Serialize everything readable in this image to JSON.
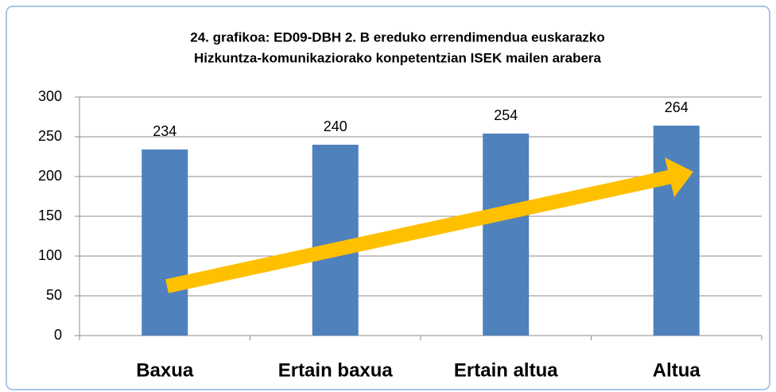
{
  "chart_data": {
    "type": "bar",
    "title": [
      "24. grafikoa: ED09-DBH 2. B ereduko errendimendua euskarazko",
      "Hizkuntza-komunikaziorako konpetentzian ISEK mailen arabera"
    ],
    "categories": [
      "Baxua",
      "Ertain baxua",
      "Ertain altua",
      "Altua"
    ],
    "values": [
      234,
      240,
      254,
      264
    ],
    "color": "#4f81bd",
    "ylim": [
      0,
      300
    ],
    "yticks": [
      0,
      50,
      100,
      150,
      200,
      250,
      300
    ],
    "grid": true
  }
}
